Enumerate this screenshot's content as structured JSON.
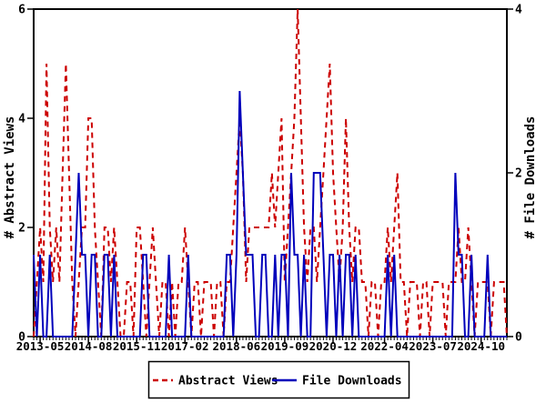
{
  "chart_data": {
    "type": "line",
    "title": "",
    "x_unit": "month",
    "x_start": "2013-03",
    "x_end": "2025-06",
    "x_tick_labels": [
      "2013-05",
      "2014-08",
      "2015-11",
      "2017-02",
      "2018-06",
      "2019-09",
      "2020-12",
      "2022-04",
      "2023-07",
      "2024-10"
    ],
    "x_tick_month_indices": [
      2,
      17,
      32,
      47,
      63,
      78,
      93,
      109,
      124,
      139
    ],
    "left_axis": {
      "label": "# Abstract Views",
      "range": [
        0,
        6
      ],
      "ticks": [
        0,
        2,
        4,
        6
      ]
    },
    "right_axis": {
      "label": "# File Downloads",
      "range": [
        0,
        4
      ],
      "ticks": [
        0,
        2,
        4
      ]
    },
    "grid": "off",
    "legend": {
      "position": "bottom-center",
      "border": true
    },
    "series": [
      {
        "name": "Abstract Views",
        "axis": "left",
        "color": "#cc0000",
        "style": "dashed",
        "values": [
          0,
          1,
          2,
          1,
          5,
          2,
          1,
          2,
          1,
          3,
          5,
          3,
          1,
          0,
          1,
          2,
          2,
          4,
          4,
          2,
          1,
          0,
          2,
          2,
          1,
          2,
          1,
          0,
          0,
          1,
          1,
          0,
          2,
          2,
          1,
          0,
          1,
          2,
          1,
          0,
          1,
          1,
          0,
          1,
          0,
          1,
          1,
          2,
          1,
          0,
          1,
          1,
          0,
          1,
          1,
          1,
          0,
          1,
          1,
          0,
          1,
          1,
          2,
          3,
          4,
          3,
          1,
          2,
          2,
          2,
          2,
          2,
          2,
          2,
          3,
          2,
          3,
          4,
          1,
          2,
          3,
          4,
          6,
          4,
          2,
          1,
          2,
          2,
          1,
          2,
          3,
          4,
          5,
          3,
          2,
          1,
          2,
          4,
          2,
          1,
          2,
          2,
          1,
          1,
          0,
          1,
          1,
          0,
          1,
          1,
          2,
          1,
          2,
          3,
          1,
          1,
          0,
          1,
          1,
          1,
          0,
          1,
          1,
          0,
          1,
          1,
          1,
          1,
          0,
          1,
          1,
          1,
          2,
          1,
          1,
          2,
          1,
          0,
          1,
          1,
          1,
          1,
          0,
          1,
          1,
          1,
          1,
          0
        ]
      },
      {
        "name": "File Downloads",
        "axis": "right",
        "color": "#0000bb",
        "style": "solid",
        "values": [
          1,
          0,
          1,
          0,
          0,
          1,
          0,
          0,
          0,
          0,
          0,
          0,
          0,
          1,
          2,
          1,
          1,
          0,
          1,
          1,
          0,
          0,
          1,
          1,
          0,
          1,
          0,
          0,
          0,
          0,
          0,
          0,
          0,
          0,
          1,
          1,
          0,
          0,
          0,
          0,
          0,
          0,
          1,
          0,
          0,
          0,
          0,
          0,
          1,
          0,
          0,
          0,
          0,
          0,
          0,
          0,
          0,
          0,
          0,
          0,
          1,
          1,
          0,
          1,
          3,
          2,
          1,
          1,
          1,
          0,
          0,
          1,
          1,
          0,
          0,
          1,
          0,
          1,
          1,
          0,
          2,
          1,
          1,
          0,
          1,
          0,
          0,
          2,
          2,
          2,
          1,
          0,
          1,
          1,
          0,
          1,
          0,
          1,
          1,
          0,
          1,
          0,
          0,
          0,
          0,
          0,
          0,
          0,
          0,
          0,
          1,
          0,
          1,
          0,
          0,
          0,
          0,
          0,
          0,
          0,
          0,
          0,
          0,
          0,
          0,
          0,
          0,
          0,
          0,
          0,
          0,
          2,
          1,
          1,
          0,
          0,
          1,
          0,
          0,
          0,
          0,
          1,
          0,
          0,
          0,
          0,
          0,
          0
        ]
      }
    ]
  },
  "colors": {
    "axis": "#000000",
    "background": "#ffffff",
    "abstract_views": "#cc0000",
    "file_downloads": "#0000bb"
  }
}
